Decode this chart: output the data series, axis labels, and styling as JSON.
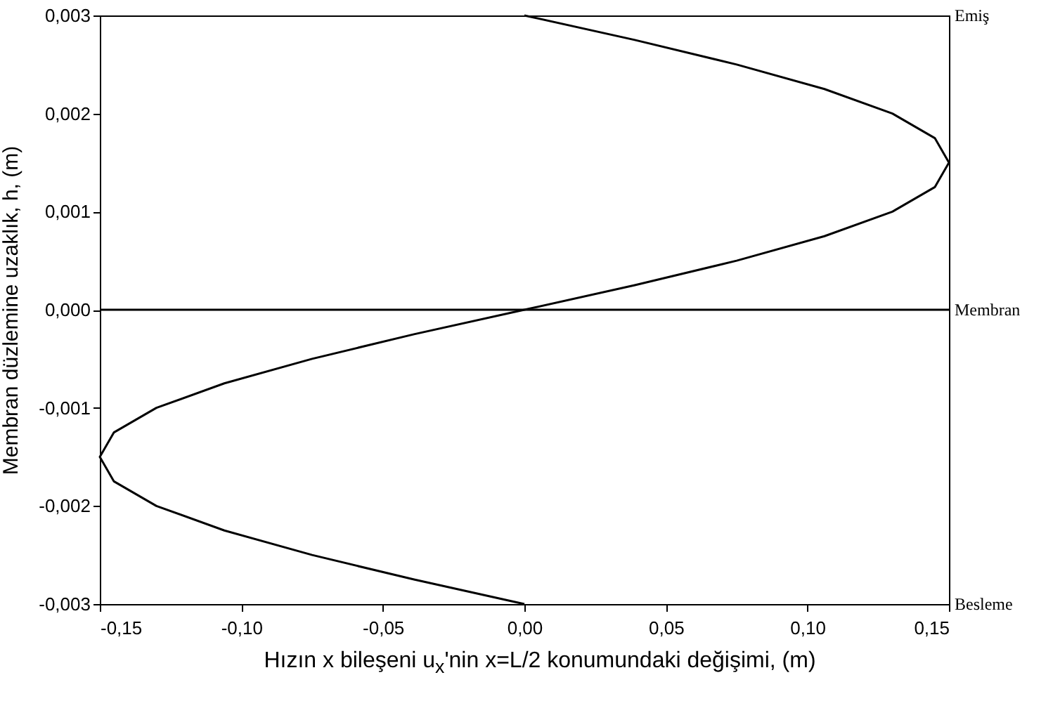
{
  "chart_data": {
    "type": "line",
    "xlabel": "Hızın x bileşeni u$_{x}$'nin x=L/2 konumundaki değişimi, (m)",
    "ylabel": "Membran düzlemine uzaklık, h, (m)",
    "series": [
      {
        "color": "#000000",
        "x": [
          0,
          -0.039,
          -0.075,
          -0.106,
          -0.13,
          -0.145,
          -0.15,
          -0.145,
          -0.13,
          -0.106,
          -0.075,
          -0.039,
          0,
          0.039,
          0.075,
          0.106,
          0.13,
          0.145,
          0.15,
          0.145,
          0.13,
          0.106,
          0.075,
          0.039,
          0
        ],
        "values": [
          -0.003,
          -0.00275,
          -0.0025,
          -0.00225,
          -0.002,
          -0.00175,
          -0.0015,
          -0.00125,
          -0.001,
          -0.00075,
          -0.0005,
          -0.00025,
          0,
          0.00025,
          0.0005,
          0.00075,
          0.001,
          0.00125,
          0.0015,
          0.00175,
          0.002,
          0.00225,
          0.0025,
          0.00275,
          0.003
        ]
      }
    ],
    "xlim": [
      -0.15,
      0.15
    ],
    "ylim": [
      -0.003,
      0.003
    ],
    "xticks": [
      {
        "value": -0.15,
        "label": "-0,15"
      },
      {
        "value": -0.1,
        "label": "-0,10"
      },
      {
        "value": -0.05,
        "label": "-0,05"
      },
      {
        "value": 0,
        "label": "0,00"
      },
      {
        "value": 0.05,
        "label": "0,05"
      },
      {
        "value": 0.1,
        "label": "0,10"
      },
      {
        "value": 0.15,
        "label": "0,15"
      }
    ],
    "yticks": [
      {
        "value": -0.003,
        "label": "-0,003"
      },
      {
        "value": -0.002,
        "label": "-0,002"
      },
      {
        "value": -0.001,
        "label": "-0,001"
      },
      {
        "value": 0,
        "label": "0,000"
      },
      {
        "value": 0.001,
        "label": "0,001"
      },
      {
        "value": 0.002,
        "label": "0,002"
      },
      {
        "value": 0.003,
        "label": "0,003"
      }
    ],
    "ref_lines": [
      {
        "axis": "y",
        "value": 0,
        "label": "Membran",
        "color": "#000000"
      }
    ],
    "annotations": [
      "Emiş",
      "Besleme"
    ],
    "grid": false,
    "marker": "none",
    "line_style": "solid"
  }
}
